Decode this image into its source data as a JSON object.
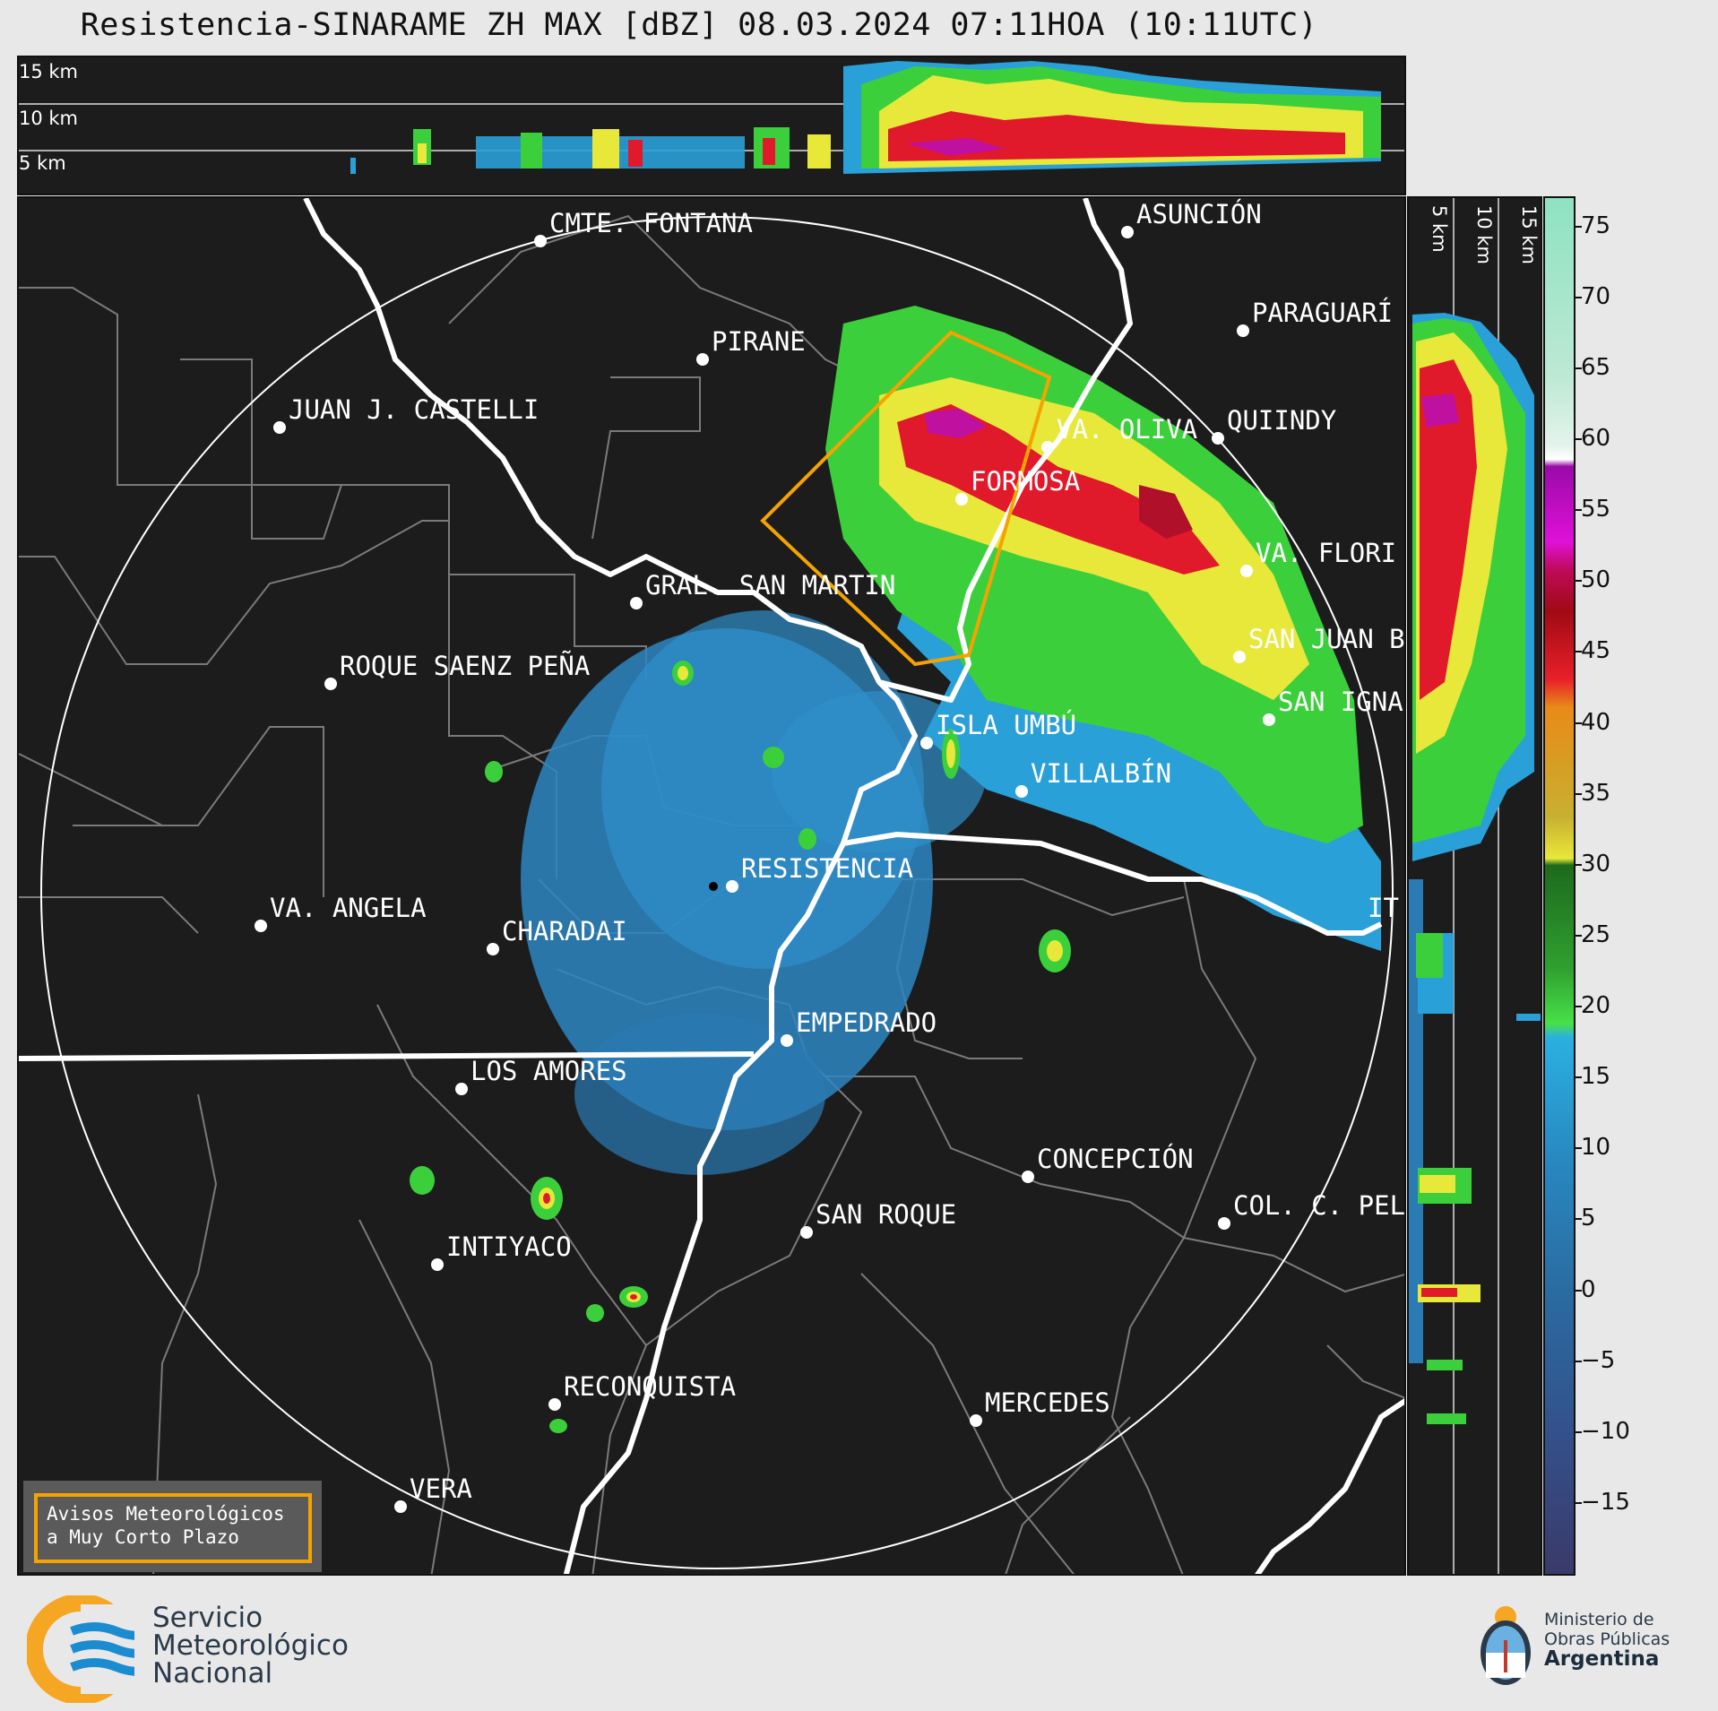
{
  "title": "Resistencia-SINARAME ZH MAX [dBZ] 08.03.2024 07:11HOA (10:11UTC)",
  "top_panel": {
    "height_labels": [
      "15 km",
      "10 km",
      "5 km"
    ]
  },
  "side_panel": {
    "height_labels": [
      "5 km",
      "10 km",
      "15 km"
    ]
  },
  "colorbar": {
    "unit": "dBZ",
    "range": [
      -20,
      77
    ],
    "ticks": [
      "75",
      "70",
      "65",
      "60",
      "55",
      "50",
      "45",
      "40",
      "35",
      "30",
      "25",
      "20",
      "15",
      "10",
      "5",
      "0",
      "−5",
      "−10",
      "−15"
    ],
    "tick_values": [
      75,
      70,
      65,
      60,
      55,
      50,
      45,
      40,
      35,
      30,
      25,
      20,
      15,
      10,
      5,
      0,
      -5,
      -10,
      -15
    ]
  },
  "cities": [
    {
      "name": "CMTE. FONTANA"
    },
    {
      "name": "ASUNCIÓN"
    },
    {
      "name": "PARAGUARÍ"
    },
    {
      "name": "PIRANE"
    },
    {
      "name": "JUAN J. CASTELLI"
    },
    {
      "name": "QUIINDY"
    },
    {
      "name": "VA. OLIVA"
    },
    {
      "name": "FORMOSA"
    },
    {
      "name": "VA. FLORI"
    },
    {
      "name": "GRAL. SAN MARTIN"
    },
    {
      "name": "SAN JUAN B"
    },
    {
      "name": "ROQUE SAENZ PEÑA"
    },
    {
      "name": "SAN IGNA"
    },
    {
      "name": "ISLA UMBÚ"
    },
    {
      "name": "VILLALBÍN"
    },
    {
      "name": "RESISTENCIA"
    },
    {
      "name": "VA. ANGELA"
    },
    {
      "name": "CHARADAI"
    },
    {
      "name": "IT"
    },
    {
      "name": "EMPEDRADO"
    },
    {
      "name": "LOS AMORES"
    },
    {
      "name": "CONCEPCIÓN"
    },
    {
      "name": "SAN ROQUE"
    },
    {
      "name": "COL. C. PEL"
    },
    {
      "name": "INTIYACO"
    },
    {
      "name": "RECONQUISTA"
    },
    {
      "name": "MERCEDES"
    },
    {
      "name": "VERA"
    }
  ],
  "legend": {
    "line1": "Avisos Meteorológicos",
    "line2": "a Muy Corto Plazo",
    "color": "#f5a300"
  },
  "footer": {
    "smn": [
      "Servicio",
      "Meteorológico",
      "Nacional"
    ],
    "ministry": [
      "Ministerio de",
      "Obras Públicas",
      "Argentina"
    ]
  }
}
